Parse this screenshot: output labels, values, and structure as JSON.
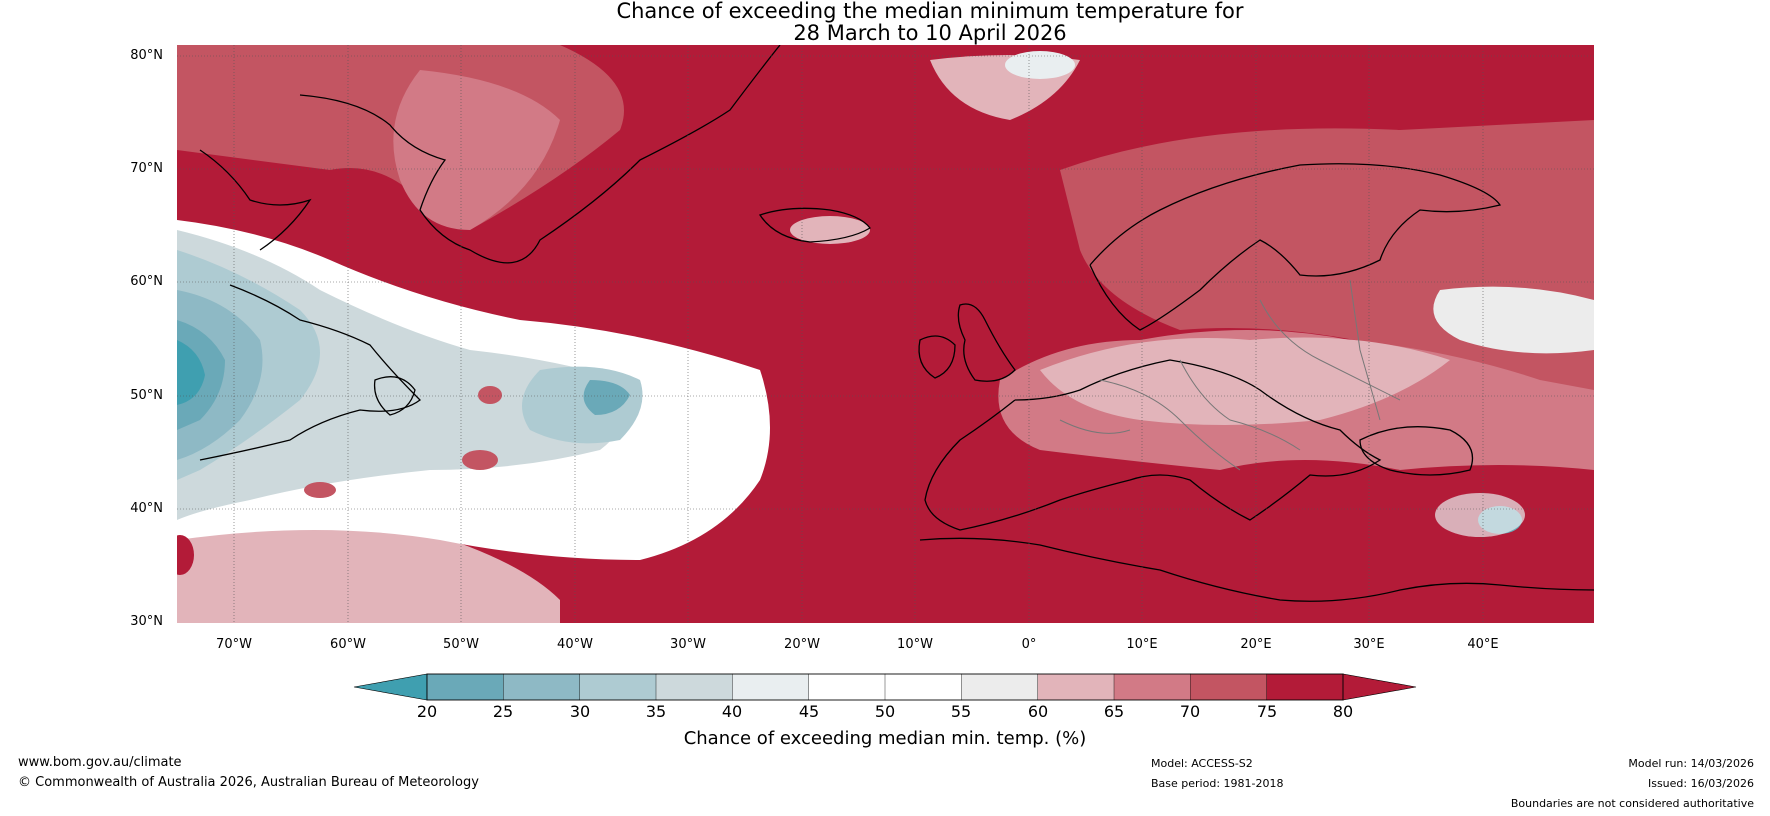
{
  "title": {
    "line1": "Chance of exceeding the median minimum temperature for",
    "line2": "28 March to 10 April 2026"
  },
  "map": {
    "lat_labels": [
      "80°N",
      "70°N",
      "60°N",
      "50°N",
      "40°N",
      "30°N"
    ],
    "lon_labels": [
      "70°W",
      "60°W",
      "50°W",
      "40°W",
      "30°W",
      "20°W",
      "10°W",
      "0°",
      "10°E",
      "20°E",
      "30°E",
      "40°E"
    ]
  },
  "colorbar": {
    "ticks": [
      "20",
      "25",
      "30",
      "35",
      "40",
      "45",
      "50",
      "55",
      "60",
      "65",
      "70",
      "75",
      "80"
    ],
    "colors": [
      "#3f9fb0",
      "#6aa9b8",
      "#8eb9c5",
      "#aecbd2",
      "#cdd9dc",
      "#e9eef0",
      "#ffffff",
      "#ffffff",
      "#ececec",
      "#e2b4ba",
      "#d27a86",
      "#c35562",
      "#b31b38"
    ],
    "label": "Chance of exceeding median min. temp. (%)"
  },
  "footer": {
    "url": "www.bom.gov.au/climate",
    "copyright": "© Commonwealth of Australia 2026, Australian Bureau of Meteorology",
    "model": "Model: ACCESS-S2",
    "base_period": "Base period: 1981-2018",
    "model_run": "Model run: 14/03/2026",
    "issued": "Issued: 16/03/2026",
    "disclaimer": "Boundaries are not considered authoritative"
  }
}
